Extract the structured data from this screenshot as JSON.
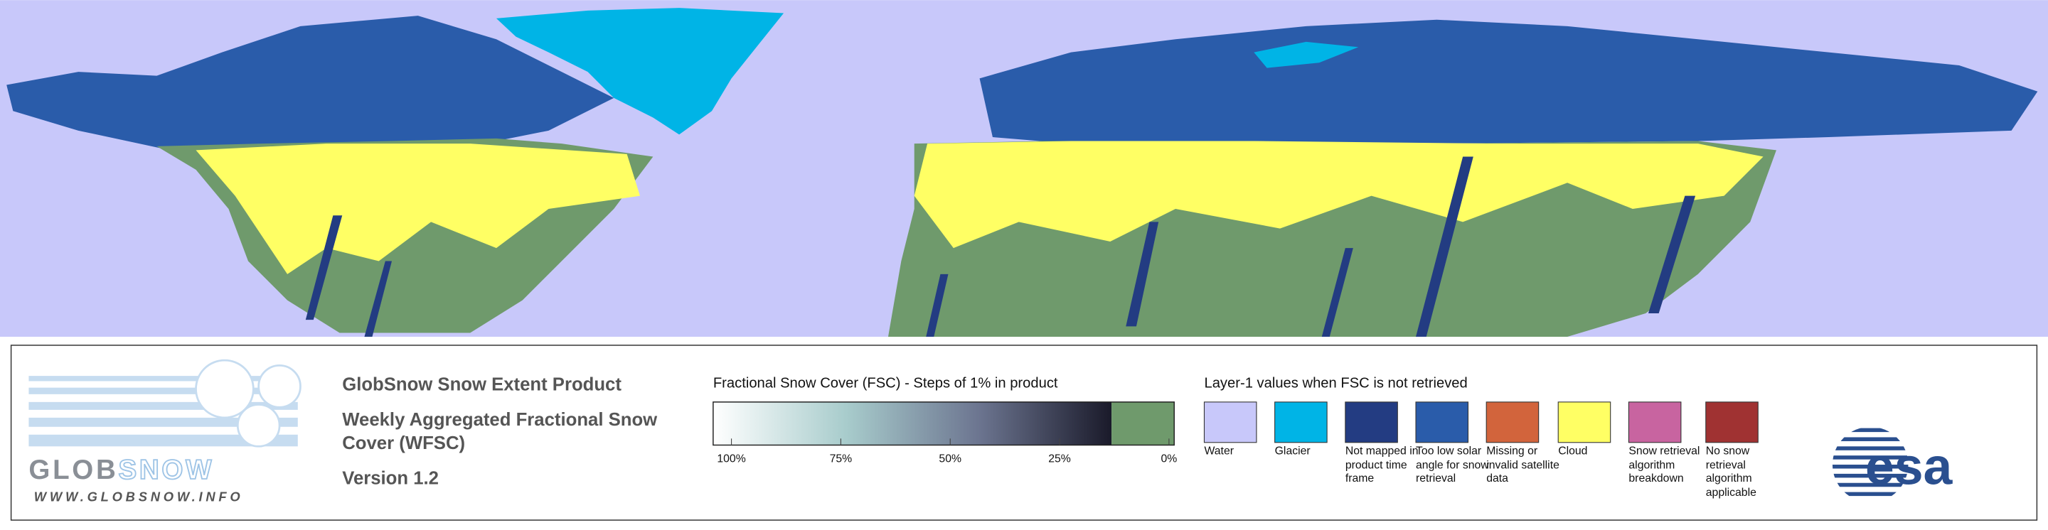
{
  "header": {
    "title": "GlobSnow Snow Extent Product",
    "subtitle": "Weekly Aggregated Fractional Snow Cover (WFSC)",
    "version": "Version 1.2"
  },
  "logos": {
    "globsnow_left": "GLOB",
    "globsnow_right": "SNOW",
    "globsnow_url": "WWW.GLOBSNOW.INFO",
    "esa": "esa"
  },
  "colorbar": {
    "title": "Fractional Snow Cover (FSC) - Steps of 1% in product",
    "range": [
      100,
      0
    ],
    "ticks": [
      {
        "value": 100,
        "label": "100%"
      },
      {
        "value": 75,
        "label": "75%"
      },
      {
        "value": 50,
        "label": "50%"
      },
      {
        "value": 25,
        "label": "25%"
      },
      {
        "value": 0,
        "label": "0%"
      }
    ],
    "colors": [
      "#ffffff",
      "#a8cccc",
      "#6c7590",
      "#1a1a2a"
    ],
    "snow_free_color": "#6f9a6c"
  },
  "legend": {
    "title": "Layer-1 values when FSC is not retrieved",
    "items": [
      {
        "label": "Water",
        "color": "#c8c8fa"
      },
      {
        "label": "Glacier",
        "color": "#00b4e6"
      },
      {
        "label": "Not mapped in product time frame",
        "color": "#233c82"
      },
      {
        "label": "Too low solar angle for snow retrieval",
        "color": "#2a5caa"
      },
      {
        "label": "Missing or invalid satellite data",
        "color": "#d2643c"
      },
      {
        "label": "Cloud",
        "color": "#ffff64"
      },
      {
        "label": "Snow retrieval algorithm breakdown",
        "color": "#c864a0"
      },
      {
        "label": "No snow retrieval algorithm applicable",
        "color": "#a03232"
      }
    ]
  }
}
